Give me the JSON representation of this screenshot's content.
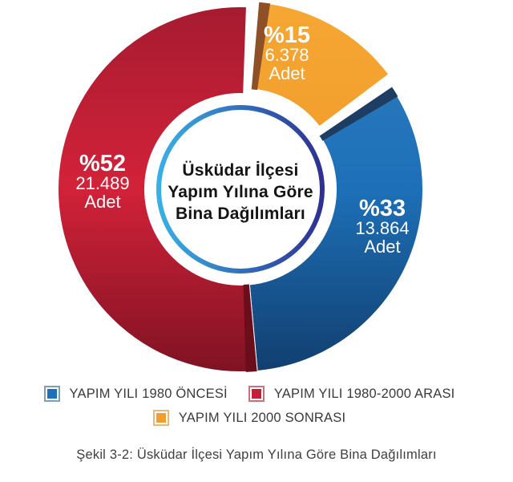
{
  "caption": "Şekil 3-2: Üsküdar İlçesi Yapım Yılına Göre Bina Dağılımları",
  "chart_data": {
    "type": "pie",
    "variant": "exploded-donut",
    "title": "Üsküdar İlçesi Yapım Yılına Göre Bina Dağılımları",
    "center_title": [
      "Üsküdar İlçesi",
      "Yapım Yılına Göre",
      "Bina Dağılımları"
    ],
    "start_angle_deg": 2,
    "background": "#ffffff",
    "legend_position": "bottom",
    "inner_ring_gradient": [
      "#38b0e5",
      "#2d3192"
    ],
    "slices": [
      {
        "key": "yapim-yili-2000-sonrasi",
        "legend": "YAPIM YILI 2000 SONRASI",
        "percent": 15,
        "percent_label": "%15",
        "count": 6378,
        "count_label": "6.378",
        "unit": "Adet",
        "color": "#f29e2c",
        "gradient": [
          "#f6a734",
          "#f19c2a",
          "#e68e1f"
        ],
        "bevel_color": "#8e5026",
        "legend_border": "#e9b878",
        "exploded": true
      },
      {
        "key": "yapim-yili-1980-oncesi",
        "legend": "YAPIM YILI 1980 ÖNCESİ",
        "percent": 33,
        "percent_label": "%33",
        "count": 13864,
        "count_label": "13.864",
        "unit": "Adet",
        "color": "#1b72ba",
        "gradient": [
          "#2f7cbe",
          "#1d70b8",
          "#123e6e"
        ],
        "bevel_color": "#1e3d63",
        "legend_border": "#7e9fb6",
        "exploded": false
      },
      {
        "key": "yapim-yili-1980-2000-arasi",
        "legend": "YAPIM YILI 1980-2000 ARASI",
        "percent": 52,
        "percent_label": "%52",
        "count": 21489,
        "count_label": "21.489",
        "unit": "Adet",
        "color": "#c51f38",
        "gradient": [
          "#a51b30",
          "#d22239",
          "#7f1222"
        ],
        "bevel_color": "#6b0e1c",
        "legend_border": "#c4737c",
        "exploded": false
      }
    ]
  }
}
